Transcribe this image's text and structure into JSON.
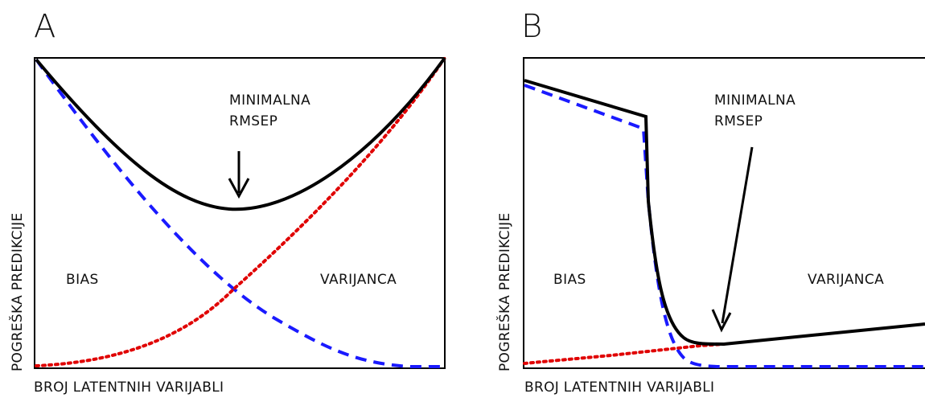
{
  "panels": [
    {
      "letter": "A",
      "ylabel": "POGREŠKA PREDIKCIJE",
      "xlabel": "BROJ LATENTNIH VARIJABLI",
      "annot_line1": "MINIMALNA",
      "annot_line2": "RMSEP",
      "bias_label": "BIAS",
      "variance_label": "VARIJANCA"
    },
    {
      "letter": "B",
      "ylabel": "POGREŠKA PREDIKCIJE",
      "xlabel": "BROJ LATENTNIH VARIJABLI",
      "annot_line1": "MINIMALNA",
      "annot_line2": "RMSEP",
      "bias_label": "BIAS",
      "variance_label": "VARIJANCA"
    }
  ],
  "colors": {
    "total_error": "#000000",
    "bias_curve": "#1a1aff",
    "variance_curve": "#e00000"
  }
}
